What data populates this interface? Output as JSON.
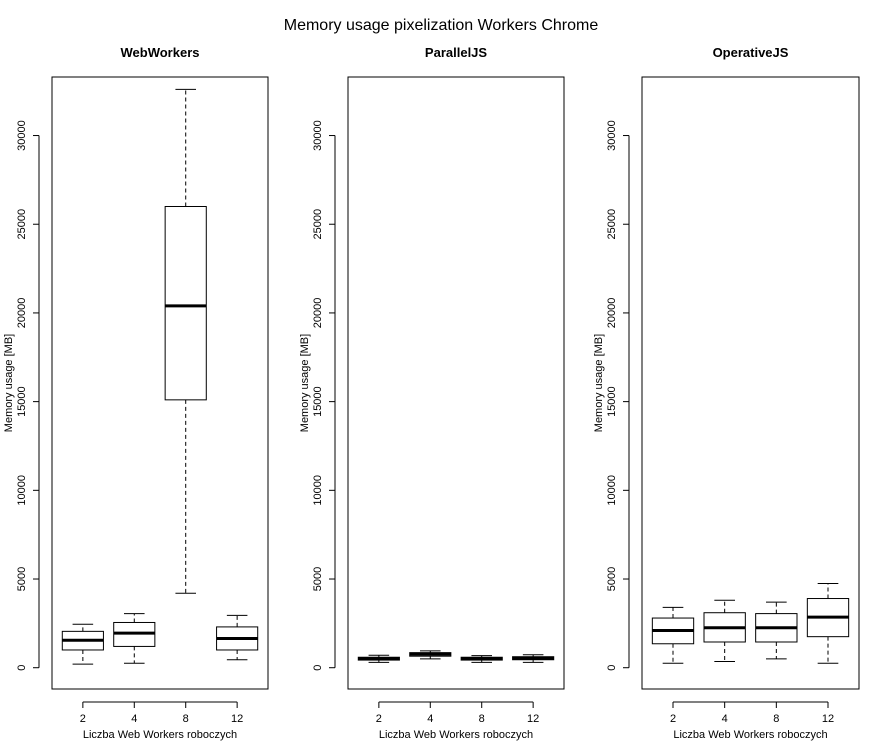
{
  "title": "Memory usage pixelization Workers Chrome",
  "chart_data": [
    {
      "type": "box",
      "title": "WebWorkers",
      "xlabel": "Liczba Web Workers roboczych",
      "ylabel": "Memory usage [MB]",
      "ylim": [
        -1200,
        33300
      ],
      "yticks": [
        0,
        5000,
        10000,
        15000,
        20000,
        25000,
        30000
      ],
      "categories": [
        "2",
        "4",
        "8",
        "12"
      ],
      "boxes": [
        {
          "min": 200,
          "q1": 1000,
          "median": 1550,
          "q3": 2050,
          "max": 2450
        },
        {
          "min": 250,
          "q1": 1200,
          "median": 1950,
          "q3": 2550,
          "max": 3050
        },
        {
          "min": 4200,
          "q1": 15100,
          "median": 20400,
          "q3": 26000,
          "max": 32600
        },
        {
          "min": 450,
          "q1": 1000,
          "median": 1650,
          "q3": 2300,
          "max": 2950
        }
      ]
    },
    {
      "type": "box",
      "title": "ParallelJS",
      "xlabel": "Liczba Web Workers roboczych",
      "ylabel": "Memory usage [MB]",
      "ylim": [
        -1200,
        33300
      ],
      "yticks": [
        0,
        5000,
        10000,
        15000,
        20000,
        25000,
        30000
      ],
      "categories": [
        "2",
        "4",
        "8",
        "12"
      ],
      "boxes": [
        {
          "min": 300,
          "q1": 430,
          "median": 510,
          "q3": 590,
          "max": 700
        },
        {
          "min": 500,
          "q1": 650,
          "median": 760,
          "q3": 850,
          "max": 950
        },
        {
          "min": 300,
          "q1": 430,
          "median": 510,
          "q3": 590,
          "max": 680
        },
        {
          "min": 300,
          "q1": 450,
          "median": 540,
          "q3": 620,
          "max": 730
        }
      ]
    },
    {
      "type": "box",
      "title": "OperativeJS",
      "xlabel": "Liczba Web Workers roboczych",
      "ylabel": "Memory usage [MB]",
      "ylim": [
        -1200,
        33300
      ],
      "yticks": [
        0,
        5000,
        10000,
        15000,
        20000,
        25000,
        30000
      ],
      "categories": [
        "2",
        "4",
        "8",
        "12"
      ],
      "boxes": [
        {
          "min": 250,
          "q1": 1350,
          "median": 2100,
          "q3": 2800,
          "max": 3400
        },
        {
          "min": 350,
          "q1": 1450,
          "median": 2250,
          "q3": 3100,
          "max": 3800
        },
        {
          "min": 500,
          "q1": 1450,
          "median": 2250,
          "q3": 3050,
          "max": 3700
        },
        {
          "min": 250,
          "q1": 1750,
          "median": 2850,
          "q3": 3900,
          "max": 4750
        }
      ]
    }
  ]
}
